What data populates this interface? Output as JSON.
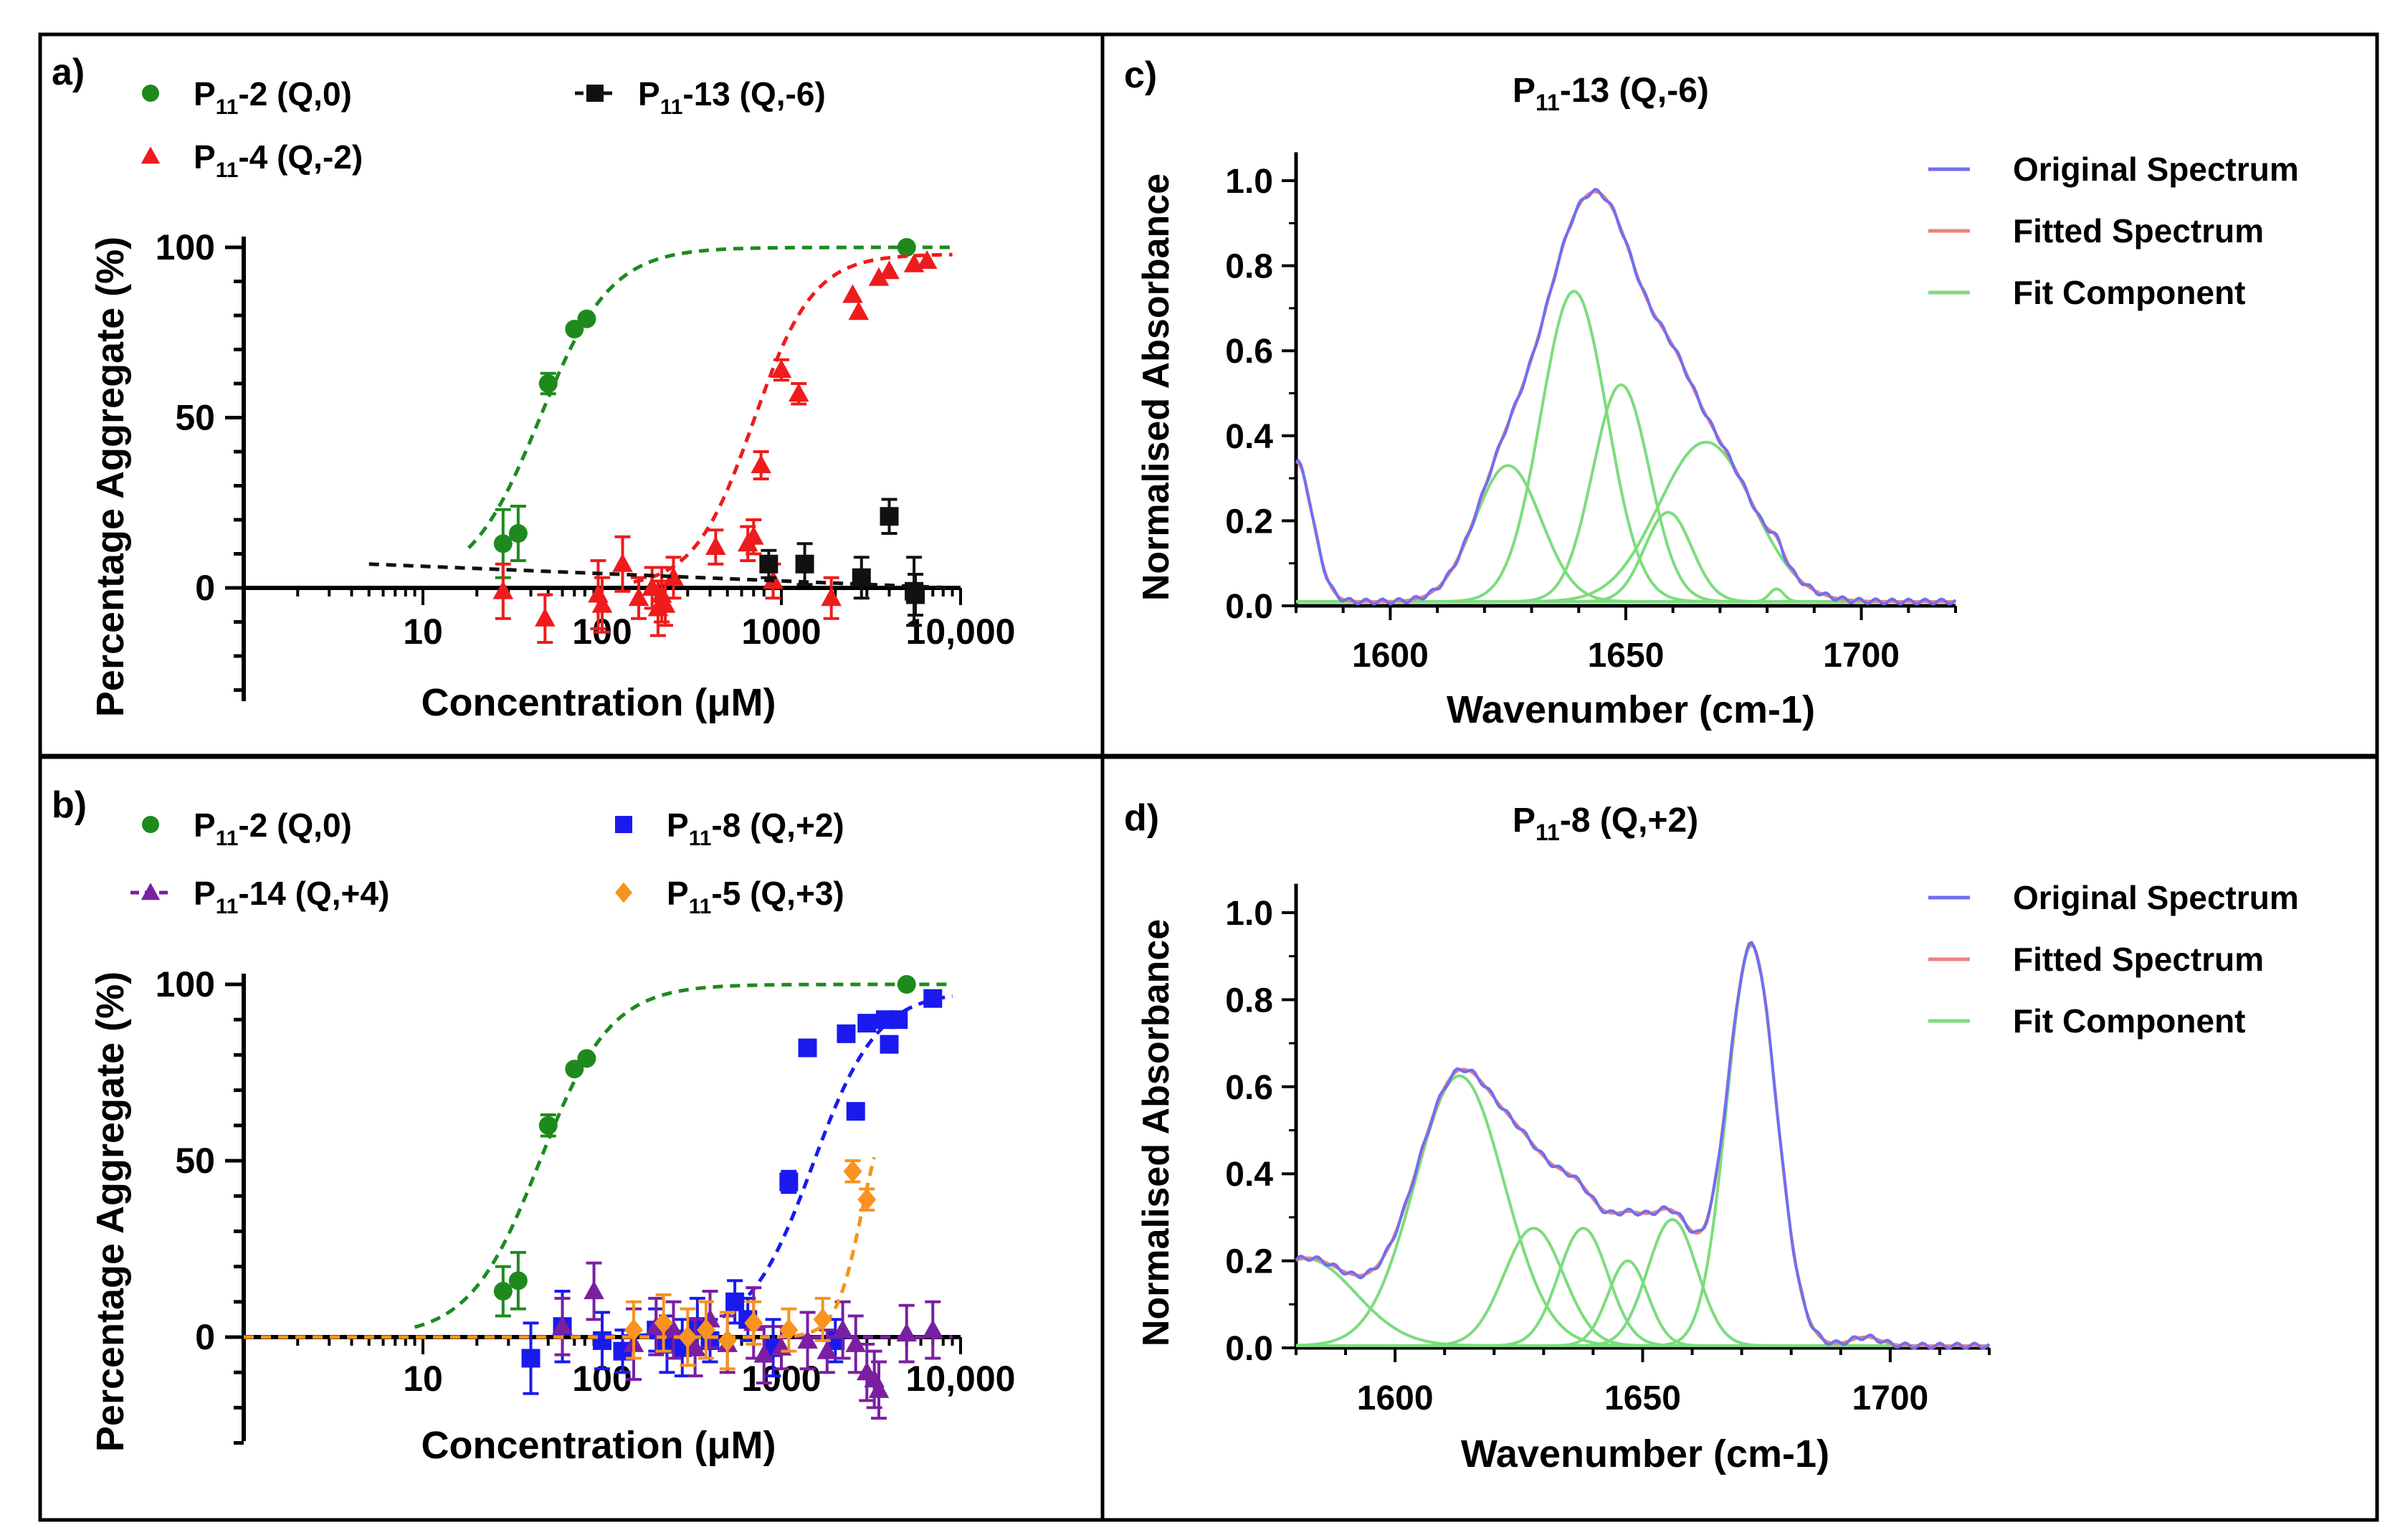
{
  "chart_data": [
    {
      "panel": "a",
      "panel_label": "a)",
      "type": "scatter",
      "xscale": "log",
      "xlim": [
        1,
        10000
      ],
      "ylim": [
        -30,
        100
      ],
      "xlabel": "Concentration (μM)",
      "ylabel": "Percentage Aggregate (%)",
      "xticks": [
        10,
        100,
        1000,
        10000
      ],
      "xtick_labels": [
        "10",
        "100",
        "1000",
        "10,000"
      ],
      "yticks": [
        0,
        50,
        100
      ],
      "ytick_labels": [
        "0",
        "50",
        "100"
      ],
      "legend": [
        {
          "sub": "11",
          "label": "-2 (Q,0)",
          "marker": "circle",
          "color": "#1e8a1e",
          "line": false
        },
        {
          "sub": "11",
          "label": "-13 (Q,-6)",
          "marker": "square",
          "color": "#111111",
          "line": true
        },
        {
          "sub": "11",
          "label": "-4 (Q,-2)",
          "marker": "triangle",
          "color": "#ee1c1c",
          "line": false
        }
      ],
      "series": [
        {
          "name": "P11-2 (Q,0)",
          "marker": "circle",
          "color": "#1e8a1e",
          "points": [
            [
              28,
              13,
              10
            ],
            [
              34,
              16,
              8
            ],
            [
              50,
              60,
              3
            ],
            [
              70,
              76,
              0
            ],
            [
              82,
              79,
              0
            ],
            [
              5000,
              100,
              0
            ]
          ],
          "fit": {
            "type": "hill",
            "bottom": 0,
            "top": 100,
            "ec50": 45,
            "hill": 2.2,
            "xmin": 18,
            "xmax": 9000
          }
        },
        {
          "name": "P11-4 (Q,-2)",
          "marker": "triangle",
          "color": "#ee1c1c",
          "points": [
            [
              28,
              -1,
              8
            ],
            [
              48,
              -9,
              7
            ],
            [
              95,
              -2,
              10
            ],
            [
              100,
              -5,
              8
            ],
            [
              130,
              7,
              8
            ],
            [
              160,
              -3,
              6
            ],
            [
              190,
              0,
              6
            ],
            [
              205,
              -6,
              8
            ],
            [
              215,
              -2,
              8
            ],
            [
              225,
              -5,
              6
            ],
            [
              250,
              3,
              6
            ],
            [
              430,
              12,
              5
            ],
            [
              650,
              13,
              5
            ],
            [
              700,
              15,
              5
            ],
            [
              770,
              36,
              4
            ],
            [
              900,
              2,
              5
            ],
            [
              1000,
              64,
              3
            ],
            [
              1250,
              57,
              3
            ],
            [
              1900,
              -3,
              6
            ],
            [
              2500,
              86,
              0
            ],
            [
              2700,
              81,
              0
            ],
            [
              3500,
              91,
              0
            ],
            [
              4000,
              93,
              0
            ],
            [
              5500,
              95,
              0
            ],
            [
              6500,
              96,
              0
            ]
          ],
          "fit": {
            "type": "hill",
            "bottom": 0,
            "top": 98,
            "ec50": 700,
            "hill": 2.6,
            "xmin": 150,
            "xmax": 9000
          }
        },
        {
          "name": "P11-13 (Q,-6)",
          "marker": "square",
          "color": "#111111",
          "points": [
            [
              850,
              7,
              4
            ],
            [
              1350,
              7,
              6
            ],
            [
              2800,
              3,
              6
            ],
            [
              4000,
              21,
              5
            ],
            [
              5500,
              -1,
              10
            ],
            [
              5600,
              -2,
              6
            ]
          ],
          "fit": {
            "type": "flat",
            "y0": 7,
            "y1": 0,
            "xmin": 5,
            "xmax": 9000
          }
        }
      ]
    },
    {
      "panel": "b",
      "panel_label": "b)",
      "type": "scatter",
      "xscale": "log",
      "xlim": [
        1,
        10000
      ],
      "ylim": [
        -30,
        100
      ],
      "xlabel": "Concentration (μM)",
      "ylabel": "Percentage Aggregate (%)",
      "xticks": [
        10,
        100,
        1000,
        10000
      ],
      "xtick_labels": [
        "10",
        "100",
        "1000",
        "10,000"
      ],
      "yticks": [
        0,
        50,
        100
      ],
      "ytick_labels": [
        "0",
        "50",
        "100"
      ],
      "legend": [
        {
          "sub": "11",
          "label": "-2 (Q,0)",
          "marker": "circle",
          "color": "#1e8a1e",
          "line": false
        },
        {
          "sub": "11",
          "label": "-8 (Q,+2)",
          "marker": "square",
          "color": "#1a1aee",
          "line": false
        },
        {
          "sub": "11",
          "label": "-14 (Q,+4)",
          "marker": "triangle",
          "color": "#7a1fa2",
          "line": true
        },
        {
          "sub": "11",
          "label": "-5 (Q,+3)",
          "marker": "diamond",
          "color": "#f7931e",
          "line": false
        }
      ],
      "series": [
        {
          "name": "P11-2 (Q,0)",
          "marker": "circle",
          "color": "#1e8a1e",
          "points": [
            [
              28,
              13,
              7
            ],
            [
              34,
              16,
              8
            ],
            [
              50,
              60,
              3
            ],
            [
              70,
              76,
              0
            ],
            [
              82,
              79,
              0
            ],
            [
              5000,
              100,
              0
            ]
          ],
          "fit": {
            "type": "hill",
            "bottom": 0,
            "top": 100,
            "ec50": 45,
            "hill": 2.2,
            "xmin": 9,
            "xmax": 9000
          }
        },
        {
          "name": "P11-8 (Q,+2)",
          "marker": "square",
          "color": "#1a1aee",
          "points": [
            [
              40,
              -6,
              10
            ],
            [
              60,
              3,
              10
            ],
            [
              100,
              -1,
              8
            ],
            [
              130,
              -4,
              6
            ],
            [
              200,
              2,
              6
            ],
            [
              230,
              -2,
              8
            ],
            [
              280,
              -3,
              8
            ],
            [
              340,
              3,
              8
            ],
            [
              400,
              -1,
              6
            ],
            [
              550,
              10,
              6
            ],
            [
              650,
              5,
              6
            ],
            [
              900,
              -3,
              8
            ],
            [
              1100,
              44,
              3
            ],
            [
              1400,
              82,
              0
            ],
            [
              2000,
              -1,
              6
            ],
            [
              2300,
              86,
              0
            ],
            [
              2600,
              64,
              2
            ],
            [
              3000,
              89,
              0
            ],
            [
              3800,
              90,
              0
            ],
            [
              4000,
              83,
              2
            ],
            [
              4500,
              90,
              0
            ],
            [
              7000,
              96,
              0
            ]
          ],
          "fit": {
            "type": "hill",
            "bottom": 0,
            "top": 98,
            "ec50": 1500,
            "hill": 2.4,
            "xmin": 1,
            "xmax": 9000
          }
        },
        {
          "name": "P11-14 (Q,+4)",
          "marker": "triangle",
          "color": "#7a1fa2",
          "points": [
            [
              60,
              3,
              8
            ],
            [
              90,
              13,
              8
            ],
            [
              150,
              -2,
              10
            ],
            [
              200,
              3,
              8
            ],
            [
              250,
              2,
              8
            ],
            [
              330,
              -3,
              8
            ],
            [
              400,
              5,
              8
            ],
            [
              500,
              -2,
              8
            ],
            [
              700,
              4,
              10
            ],
            [
              800,
              -5,
              8
            ],
            [
              1000,
              -3,
              6
            ],
            [
              1400,
              -1,
              8
            ],
            [
              1800,
              -4,
              6
            ],
            [
              2200,
              2,
              8
            ],
            [
              2600,
              -2,
              8
            ],
            [
              3000,
              -10,
              8
            ],
            [
              3300,
              -12,
              8
            ],
            [
              3500,
              -15,
              8
            ],
            [
              5000,
              1,
              8
            ],
            [
              7000,
              2,
              8
            ]
          ],
          "fit": {
            "type": "flat",
            "y0": 0,
            "y1": 0,
            "xmin": 1,
            "xmax": 9000
          }
        },
        {
          "name": "P11-5 (Q,+3)",
          "marker": "diamond",
          "color": "#f7931e",
          "points": [
            [
              150,
              2,
              8
            ],
            [
              220,
              4,
              8
            ],
            [
              300,
              0,
              8
            ],
            [
              380,
              2,
              8
            ],
            [
              500,
              -1,
              8
            ],
            [
              700,
              4,
              6
            ],
            [
              1100,
              2,
              6
            ],
            [
              1700,
              5,
              6
            ],
            [
              2500,
              47,
              3
            ],
            [
              3000,
              39,
              3
            ]
          ],
          "fit": {
            "type": "hill",
            "bottom": 0,
            "top": 70,
            "ec50": 2800,
            "hill": 6,
            "xmin": 1,
            "xmax": 3300
          }
        }
      ]
    },
    {
      "panel": "c",
      "panel_label": "c)",
      "type": "line",
      "title_sub": "11",
      "title_rest": "-13 (Q,-6)",
      "xlim": [
        1580,
        1720
      ],
      "ylim": [
        0,
        1.05
      ],
      "xlabel": "Wavenumber (cm-1)",
      "ylabel": "Normalised Absorbance",
      "xticks": [
        1600,
        1650,
        1700
      ],
      "xtick_labels": [
        "1600",
        "1650",
        "1700"
      ],
      "yticks": [
        0,
        0.2,
        0.4,
        0.6,
        0.8,
        1.0
      ],
      "ytick_labels": [
        "0.0",
        "0.2",
        "0.4",
        "0.6",
        "0.8",
        "1.0"
      ],
      "legend": [
        {
          "label": "Original Spectrum",
          "color": "#6f6ff0"
        },
        {
          "label": "Fitted Spectrum",
          "color": "#f07f7f"
        },
        {
          "label": "Fit Component",
          "color": "#7ddc7d"
        }
      ],
      "components": [
        [
          1580,
          0.33,
          3.5
        ],
        [
          1625,
          0.32,
          7
        ],
        [
          1639,
          0.73,
          7
        ],
        [
          1649,
          0.51,
          6
        ],
        [
          1659,
          0.21,
          5
        ],
        [
          1667,
          0.375,
          10
        ],
        [
          1682,
          0.03,
          1.5
        ]
      ],
      "baseline": 0.01
    },
    {
      "panel": "d",
      "panel_label": "d)",
      "type": "line",
      "title_sub": "11",
      "title_rest": "-8 (Q,+2)",
      "xlim": [
        1580,
        1720
      ],
      "ylim": [
        0,
        1.05
      ],
      "xlabel": "Wavenumber (cm-1)",
      "ylabel": "Normalised Absorbance",
      "xticks": [
        1600,
        1650,
        1700
      ],
      "xtick_labels": [
        "1600",
        "1650",
        "1700"
      ],
      "yticks": [
        0,
        0.2,
        0.4,
        0.6,
        0.8,
        1.0
      ],
      "ytick_labels": [
        "0.0",
        "0.2",
        "0.4",
        "0.6",
        "0.8",
        "1.0"
      ],
      "legend": [
        {
          "label": "Original Spectrum",
          "color": "#6f6ff0"
        },
        {
          "label": "Fitted Spectrum",
          "color": "#f07f7f"
        },
        {
          "label": "Fit Component",
          "color": "#7ddc7d"
        }
      ],
      "components": [
        [
          1582,
          0.2,
          10
        ],
        [
          1613,
          0.62,
          9
        ],
        [
          1628,
          0.27,
          6
        ],
        [
          1638,
          0.27,
          5
        ],
        [
          1647,
          0.195,
          4
        ],
        [
          1656,
          0.29,
          5
        ],
        [
          1672,
          0.92,
          5
        ],
        [
          1695,
          0.02,
          3
        ]
      ],
      "baseline": 0.005
    }
  ]
}
